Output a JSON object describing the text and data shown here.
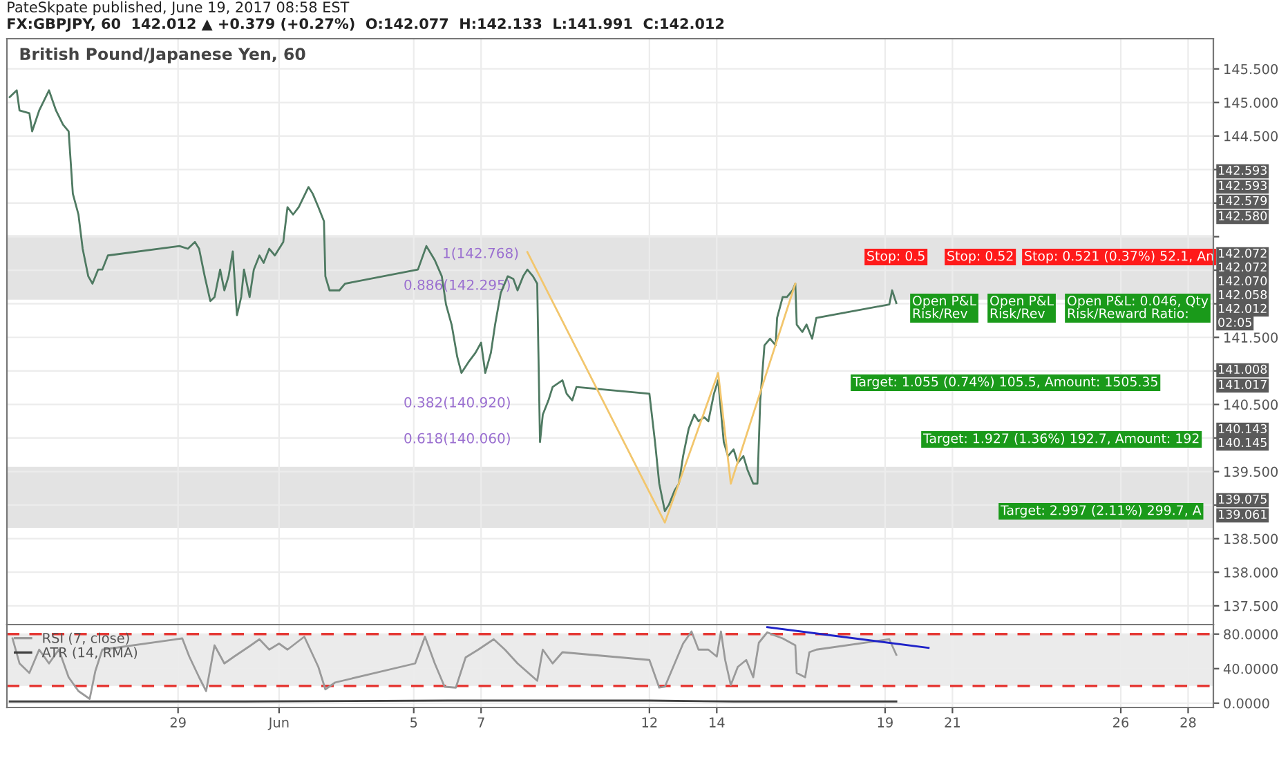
{
  "chart_data": [
    {
      "type": "line",
      "title": "British Pound/Japanese Yen, 60",
      "annotations": [
        "PateSkpate published, June 19, 2017 08:58 EST",
        "FX:GBPJPY, 60  142.012 ▲ +0.379 (+0.27%)  O:142.077  H:142.133  L:141.991  C:142.012",
        "1(142.768)",
        "0.886(142.295)",
        "0.382(140.920)",
        "0.618(140.060)",
        "Stop: 0.5",
        "Stop: 0.52",
        "Stop: 0.521 (0.37%) 52.1, An",
        "Open P&L\nRisk/Rev",
        "Open P&L\nRisk/Rev",
        "Open P&L: 0.046, Qty\nRisk/Reward Ratio:",
        "Target: 1.055 (0.74%) 105.5, Amount: 1505.35",
        "Target: 1.927 (1.36%) 192.7, Amount: 192",
        "Target: 2.997 (2.11%) 299.7, A",
        "142.593",
        "142.593",
        "142.579",
        "142.580",
        "142.072",
        "142.072",
        "142.070",
        "142.058",
        "142.012",
        "02:05",
        "141.008",
        "141.017",
        "140.143",
        "140.145",
        "139.075",
        "139.061"
      ],
      "x": [
        "2017-05-24T00:00",
        "2017-05-24T05:00",
        "2017-05-24T07:00",
        "2017-05-24T14:00",
        "2017-05-24T16:00",
        "2017-05-24T21:00",
        "2017-05-25T04:00",
        "2017-05-25T09:00",
        "2017-05-25T14:00",
        "2017-05-25T18:00",
        "2017-05-25T21:00",
        "2017-05-26T01:00",
        "2017-05-26T04:00",
        "2017-05-26T08:00",
        "2017-05-26T11:00",
        "2017-05-26T15:00",
        "2017-05-26T18:00",
        "2017-05-26T22:00",
        "2017-05-29T01:00",
        "2017-05-29T07:00",
        "2017-05-29T12:00",
        "2017-05-29T15:00",
        "2017-05-29T19:00",
        "2017-05-29T23:00",
        "2017-05-30T02:00",
        "2017-05-30T06:00",
        "2017-05-30T09:00",
        "2017-05-30T12:00",
        "2017-05-30T15:00",
        "2017-05-30T18:00",
        "2017-05-30T21:00",
        "2017-05-30T23:00",
        "2017-05-31T03:00",
        "2017-05-31T06:00",
        "2017-05-31T10:00",
        "2017-05-31T13:00",
        "2017-05-31T17:00",
        "2017-05-31T21:00",
        "2017-06-01T03:00",
        "2017-06-01T06:00",
        "2017-06-01T10:00",
        "2017-06-01T14:00",
        "2017-06-01T21:00",
        "2017-06-02T00:00",
        "2017-06-02T04:00",
        "2017-06-02T08:00",
        "2017-06-02T09:00",
        "2017-06-02T12:00",
        "2017-06-02T16:00",
        "2017-06-02T19:00",
        "2017-06-02T23:00",
        "2017-06-05T03:00",
        "2017-06-05T09:00",
        "2017-06-05T15:00",
        "2017-06-05T20:00",
        "2017-06-05T23:00",
        "2017-06-06T03:00",
        "2017-06-06T07:00",
        "2017-06-06T10:00",
        "2017-06-06T15:00",
        "2017-06-06T20:00",
        "2017-06-07T00:00",
        "2017-06-07T03:00",
        "2017-06-07T07:00",
        "2017-06-07T10:00",
        "2017-06-07T14:00",
        "2017-06-07T19:00",
        "2017-06-07T23:00",
        "2017-06-08T02:00",
        "2017-06-08T06:00",
        "2017-06-08T09:00",
        "2017-06-08T13:00",
        "2017-06-08T16:00",
        "2017-06-08T18:00",
        "2017-06-08T20:00",
        "2017-06-09T00:00",
        "2017-06-09T03:00",
        "2017-06-09T10:00",
        "2017-06-09T13:00",
        "2017-06-09T17:00",
        "2017-06-09T20:00",
        "2017-06-12T00:00",
        "2017-06-12T04:00",
        "2017-06-12T07:00",
        "2017-06-12T11:00",
        "2017-06-12T14:00",
        "2017-06-12T18:00",
        "2017-06-12T21:00",
        "2017-06-13T00:00",
        "2017-06-13T04:00",
        "2017-06-13T08:00",
        "2017-06-13T11:00",
        "2017-06-13T15:00",
        "2017-06-13T18:00",
        "2017-06-13T22:00",
        "2017-06-14T01:00",
        "2017-06-14T05:00",
        "2017-06-14T08:00",
        "2017-06-14T12:00",
        "2017-06-14T15:00",
        "2017-06-14T19:00",
        "2017-06-14T22:00",
        "2017-06-15T02:00",
        "2017-06-15T05:00",
        "2017-06-15T07:00",
        "2017-06-15T10:00",
        "2017-06-15T14:00",
        "2017-06-15T18:00",
        "2017-06-15T19:00",
        "2017-06-15T23:00",
        "2017-06-16T02:00",
        "2017-06-16T06:00",
        "2017-06-16T08:00",
        "2017-06-16T09:00",
        "2017-06-16T13:00",
        "2017-06-16T16:00",
        "2017-06-16T20:00",
        "2017-06-16T23:00",
        "2017-06-19T03:00",
        "2017-06-19T05:00",
        "2017-06-19T08:00"
      ],
      "series": [
        {
          "color": "#4f7a62",
          "values": [
            145.08,
            145.18,
            144.88,
            144.84,
            144.57,
            144.88,
            145.18,
            144.88,
            144.67,
            144.57,
            143.64,
            143.33,
            142.82,
            142.41,
            142.3,
            142.51,
            142.51,
            142.72,
            142.86,
            142.82,
            142.92,
            142.82,
            142.41,
            142.04,
            142.1,
            142.51,
            142.2,
            142.41,
            142.78,
            141.83,
            142.1,
            142.51,
            142.1,
            142.51,
            142.72,
            142.61,
            142.82,
            142.72,
            142.92,
            143.44,
            143.33,
            143.44,
            143.74,
            143.64,
            143.44,
            143.23,
            142.41,
            142.2,
            142.2,
            142.2,
            142.3,
            142.51,
            142.86,
            142.65,
            142.41,
            141.99,
            141.69,
            141.21,
            140.97,
            141.13,
            141.27,
            141.42,
            140.97,
            141.27,
            141.69,
            142.16,
            142.41,
            142.37,
            142.2,
            142.41,
            142.51,
            142.41,
            142.3,
            139.94,
            140.35,
            140.56,
            140.76,
            140.86,
            140.66,
            140.56,
            140.76,
            140.66,
            139.94,
            139.32,
            138.91,
            139.01,
            139.22,
            139.32,
            139.73,
            140.14,
            140.35,
            140.25,
            140.31,
            140.25,
            140.66,
            140.86,
            139.94,
            139.73,
            139.83,
            139.63,
            139.73,
            139.52,
            139.32,
            139.32,
            140.56,
            141.38,
            141.48,
            141.38,
            141.79,
            142.1,
            142.1,
            142.2,
            142.3,
            141.69,
            141.58,
            141.69,
            141.48,
            141.79,
            141.99,
            142.2,
            142.01
          ]
        },
        {
          "type": "line",
          "color": "#f2c66d",
          "x": [
            "2017-06-08T09:00",
            "2017-06-12T11:00",
            "2017-06-14T01:00",
            "2017-06-14T10:00",
            "2017-06-16T08:00"
          ],
          "values": [
            142.77,
            138.74,
            140.97,
            139.32,
            142.3
          ]
        }
      ],
      "bands": [
        {
          "axis": "y",
          "from": 142.06,
          "to": 143.02,
          "color": "#e3e3e3"
        },
        {
          "axis": "y",
          "from": 138.66,
          "to": 139.57,
          "color": "#e3e3e3"
        }
      ],
      "xlim": [
        "2017-05-23T22:00",
        "2017-06-28T18:00"
      ],
      "xticks": [
        {
          "value": "2017-05-29",
          "label": null
        },
        {
          "value": "2017-06-01",
          "label": null
        },
        {
          "value": "2017-06-05",
          "label": null
        },
        {
          "value": "2017-06-07",
          "label": null
        },
        {
          "value": "2017-06-12",
          "label": null
        },
        {
          "value": "2017-06-14",
          "label": null
        },
        {
          "value": "2017-06-19",
          "label": null
        },
        {
          "value": "2017-06-21",
          "label": null
        },
        {
          "value": "2017-06-26",
          "label": null
        },
        {
          "value": "2017-06-28",
          "label": null
        }
      ],
      "ylim": [
        137.22,
        145.95
      ],
      "yticks": [
        {
          "value": 137.5,
          "label": "137.500"
        },
        {
          "value": 138.0,
          "label": "138.000"
        },
        {
          "value": 138.5,
          "label": "138.500"
        },
        {
          "value": 139.0,
          "label": null
        },
        {
          "value": 139.5,
          "label": "139.500"
        },
        {
          "value": 140.0,
          "label": null
        },
        {
          "value": 140.5,
          "label": "140.500"
        },
        {
          "value": 141.0,
          "label": null
        },
        {
          "value": 141.5,
          "label": "141.500"
        },
        {
          "value": 142.0,
          "label": null
        },
        {
          "value": 142.5,
          "label": null
        },
        {
          "value": 143.0,
          "label": null
        },
        {
          "value": 143.5,
          "label": null
        },
        {
          "value": 144.0,
          "label": null
        },
        {
          "value": 144.5,
          "label": "144.500"
        },
        {
          "value": 145.0,
          "label": "145.000"
        },
        {
          "value": 145.5,
          "label": "145.500"
        }
      ],
      "grid": true,
      "tick_labels": "y"
    },
    {
      "type": "line",
      "x": [
        "2017-05-24T02:00",
        "2017-05-24T07:00",
        "2017-05-24T14:00",
        "2017-05-24T21:00",
        "2017-05-25T04:00",
        "2017-05-25T11:00",
        "2017-05-25T18:00",
        "2017-05-26T01:00",
        "2017-05-26T09:00",
        "2017-05-26T13:00",
        "2017-05-26T18:00",
        "2017-05-29T03:00",
        "2017-05-29T08:00",
        "2017-05-29T15:00",
        "2017-05-29T20:00",
        "2017-05-30T02:00",
        "2017-05-30T09:00",
        "2017-05-30T16:00",
        "2017-05-31T03:00",
        "2017-05-31T10:00",
        "2017-05-31T17:00",
        "2017-06-01T00:00",
        "2017-06-01T06:00",
        "2017-06-01T18:00",
        "2017-06-02T04:00",
        "2017-06-02T09:00",
        "2017-06-02T16:00",
        "2017-06-05T01:00",
        "2017-06-05T08:00",
        "2017-06-05T15:00",
        "2017-06-05T22:00",
        "2017-06-06T06:00",
        "2017-06-06T13:00",
        "2017-06-06T22:00",
        "2017-06-07T09:00",
        "2017-06-07T17:00",
        "2017-06-08T02:00",
        "2017-06-08T16:00",
        "2017-06-08T20:00",
        "2017-06-09T03:00",
        "2017-06-09T10:00",
        "2017-06-12T00:00",
        "2017-06-12T07:00",
        "2017-06-12T11:00",
        "2017-06-12T18:00",
        "2017-06-13T00:00",
        "2017-06-13T06:00",
        "2017-06-13T11:00",
        "2017-06-13T18:00",
        "2017-06-14T00:00",
        "2017-06-14T03:00",
        "2017-06-14T06:00",
        "2017-06-14T10:00",
        "2017-06-14T15:00",
        "2017-06-14T21:00",
        "2017-06-15T02:00",
        "2017-06-15T06:00",
        "2017-06-15T12:00",
        "2017-06-15T18:00",
        "2017-06-15T23:00",
        "2017-06-16T08:00",
        "2017-06-16T09:00",
        "2017-06-16T15:00",
        "2017-06-16T18:00",
        "2017-06-16T23:00",
        "2017-06-19T03:00",
        "2017-06-19T08:00"
      ],
      "series": [
        {
          "name": "RSI (7, close)",
          "color": "#9a9a9a",
          "values": [
            75,
            46,
            35,
            62,
            46,
            62,
            30,
            14,
            5,
            37,
            62,
            75,
            54,
            30,
            14,
            67,
            46,
            54,
            66,
            74,
            62,
            69,
            62,
            77,
            42,
            16,
            24,
            46,
            77,
            46,
            19,
            18,
            53,
            62,
            74,
            62,
            46,
            26,
            62,
            46,
            59,
            50,
            18,
            19,
            46,
            69,
            83,
            62,
            62,
            54,
            83,
            50,
            21,
            42,
            50,
            30,
            70,
            82,
            78,
            75,
            67,
            35,
            30,
            59,
            62,
            74,
            56
          ]
        },
        {
          "name": "ATR (14, RMA)",
          "color": "#404040",
          "x": [
            "2017-05-24T00:00",
            "2017-05-31T00:00",
            "2017-06-06T00:00",
            "2017-06-12T00:00",
            "2017-06-14T12:00",
            "2017-06-19T08:00"
          ],
          "values": [
            2,
            2,
            3,
            3,
            2,
            2
          ]
        },
        {
          "color": "#1f23c8",
          "x": [
            "2017-06-15T12:00",
            "2017-06-20T07:00"
          ],
          "values": [
            88,
            64
          ]
        }
      ],
      "ref_lines": [
        {
          "axis": "y",
          "value": 80,
          "color": "#e53935",
          "line_style": "dashed"
        },
        {
          "axis": "y",
          "value": 20,
          "color": "#e53935",
          "line_style": "dashed"
        }
      ],
      "bands": [
        {
          "axis": "y",
          "from": 20,
          "to": 80,
          "color": "#ebebeb"
        }
      ],
      "xlim": [
        "2017-05-23T22:00",
        "2017-06-28T18:00"
      ],
      "xticks": [
        {
          "value": "2017-05-29",
          "label": "29"
        },
        {
          "value": "2017-06-01",
          "label": "Jun"
        },
        {
          "value": "2017-06-05",
          "label": "5"
        },
        {
          "value": "2017-06-07",
          "label": "7"
        },
        {
          "value": "2017-06-12",
          "label": "12"
        },
        {
          "value": "2017-06-14",
          "label": "14"
        },
        {
          "value": "2017-06-19",
          "label": "19"
        },
        {
          "value": "2017-06-21",
          "label": "21"
        },
        {
          "value": "2017-06-26",
          "label": "26"
        },
        {
          "value": "2017-06-28",
          "label": "28"
        }
      ],
      "ylim": [
        -5,
        91
      ],
      "yticks": [
        {
          "value": 0,
          "label": "0.0000"
        },
        {
          "value": 40,
          "label": "40.0000"
        },
        {
          "value": 80,
          "label": "80.0000"
        }
      ],
      "grid": true,
      "legend": "top left"
    }
  ]
}
